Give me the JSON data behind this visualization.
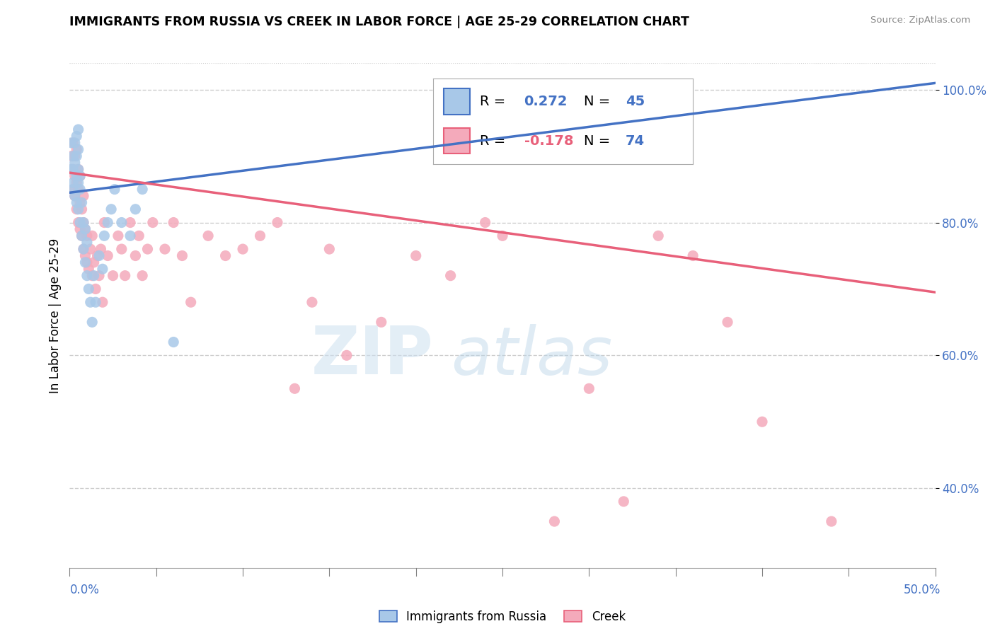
{
  "title": "IMMIGRANTS FROM RUSSIA VS CREEK IN LABOR FORCE | AGE 25-29 CORRELATION CHART",
  "source": "Source: ZipAtlas.com",
  "ylabel": "In Labor Force | Age 25-29",
  "xlim": [
    0.0,
    0.5
  ],
  "ylim": [
    0.28,
    1.04
  ],
  "yticks": [
    0.4,
    0.6,
    0.8,
    1.0
  ],
  "ytick_labels": [
    "40.0%",
    "60.0%",
    "80.0%",
    "100.0%"
  ],
  "russia_color": "#a8c8e8",
  "creek_color": "#f4aabb",
  "russia_line_color": "#4472c4",
  "creek_line_color": "#e8607a",
  "russia_R": 0.272,
  "russia_N": 45,
  "creek_R": -0.178,
  "creek_N": 74,
  "legend_label_russia": "Immigrants from Russia",
  "legend_label_creek": "Creek",
  "russia_scatter_x": [
    0.001,
    0.001,
    0.002,
    0.002,
    0.002,
    0.002,
    0.003,
    0.003,
    0.003,
    0.004,
    0.004,
    0.004,
    0.004,
    0.005,
    0.005,
    0.005,
    0.005,
    0.005,
    0.006,
    0.006,
    0.006,
    0.007,
    0.007,
    0.008,
    0.008,
    0.009,
    0.009,
    0.01,
    0.01,
    0.011,
    0.012,
    0.013,
    0.014,
    0.015,
    0.017,
    0.019,
    0.02,
    0.022,
    0.024,
    0.026,
    0.03,
    0.035,
    0.038,
    0.042,
    0.06
  ],
  "russia_scatter_y": [
    0.88,
    0.92,
    0.85,
    0.9,
    0.88,
    0.86,
    0.84,
    0.89,
    0.92,
    0.83,
    0.87,
    0.9,
    0.93,
    0.82,
    0.86,
    0.88,
    0.91,
    0.94,
    0.8,
    0.85,
    0.87,
    0.78,
    0.83,
    0.76,
    0.8,
    0.74,
    0.79,
    0.72,
    0.77,
    0.7,
    0.68,
    0.65,
    0.72,
    0.68,
    0.75,
    0.73,
    0.78,
    0.8,
    0.82,
    0.85,
    0.8,
    0.78,
    0.82,
    0.85,
    0.62
  ],
  "creek_scatter_x": [
    0.001,
    0.001,
    0.002,
    0.002,
    0.002,
    0.003,
    0.003,
    0.003,
    0.004,
    0.004,
    0.004,
    0.005,
    0.005,
    0.005,
    0.006,
    0.006,
    0.006,
    0.007,
    0.007,
    0.008,
    0.008,
    0.008,
    0.009,
    0.009,
    0.01,
    0.01,
    0.011,
    0.012,
    0.013,
    0.013,
    0.014,
    0.015,
    0.016,
    0.017,
    0.018,
    0.019,
    0.02,
    0.022,
    0.025,
    0.028,
    0.03,
    0.032,
    0.035,
    0.038,
    0.04,
    0.042,
    0.045,
    0.048,
    0.055,
    0.06,
    0.065,
    0.07,
    0.08,
    0.09,
    0.1,
    0.11,
    0.12,
    0.13,
    0.14,
    0.15,
    0.16,
    0.18,
    0.2,
    0.22,
    0.24,
    0.25,
    0.28,
    0.3,
    0.32,
    0.34,
    0.36,
    0.38,
    0.4,
    0.44
  ],
  "creek_scatter_y": [
    0.88,
    0.9,
    0.85,
    0.88,
    0.92,
    0.84,
    0.87,
    0.9,
    0.82,
    0.86,
    0.91,
    0.8,
    0.85,
    0.88,
    0.79,
    0.83,
    0.87,
    0.78,
    0.82,
    0.76,
    0.8,
    0.84,
    0.75,
    0.79,
    0.74,
    0.78,
    0.73,
    0.76,
    0.72,
    0.78,
    0.74,
    0.7,
    0.75,
    0.72,
    0.76,
    0.68,
    0.8,
    0.75,
    0.72,
    0.78,
    0.76,
    0.72,
    0.8,
    0.75,
    0.78,
    0.72,
    0.76,
    0.8,
    0.76,
    0.8,
    0.75,
    0.68,
    0.78,
    0.75,
    0.76,
    0.78,
    0.8,
    0.55,
    0.68,
    0.76,
    0.6,
    0.65,
    0.75,
    0.72,
    0.8,
    0.78,
    0.35,
    0.55,
    0.38,
    0.78,
    0.75,
    0.65,
    0.5,
    0.35
  ],
  "russia_trend_x0": 0.0,
  "russia_trend_y0": 0.845,
  "russia_trend_x1": 0.5,
  "russia_trend_y1": 1.01,
  "creek_trend_x0": 0.0,
  "creek_trend_y0": 0.875,
  "creek_trend_x1": 0.5,
  "creek_trend_y1": 0.695
}
